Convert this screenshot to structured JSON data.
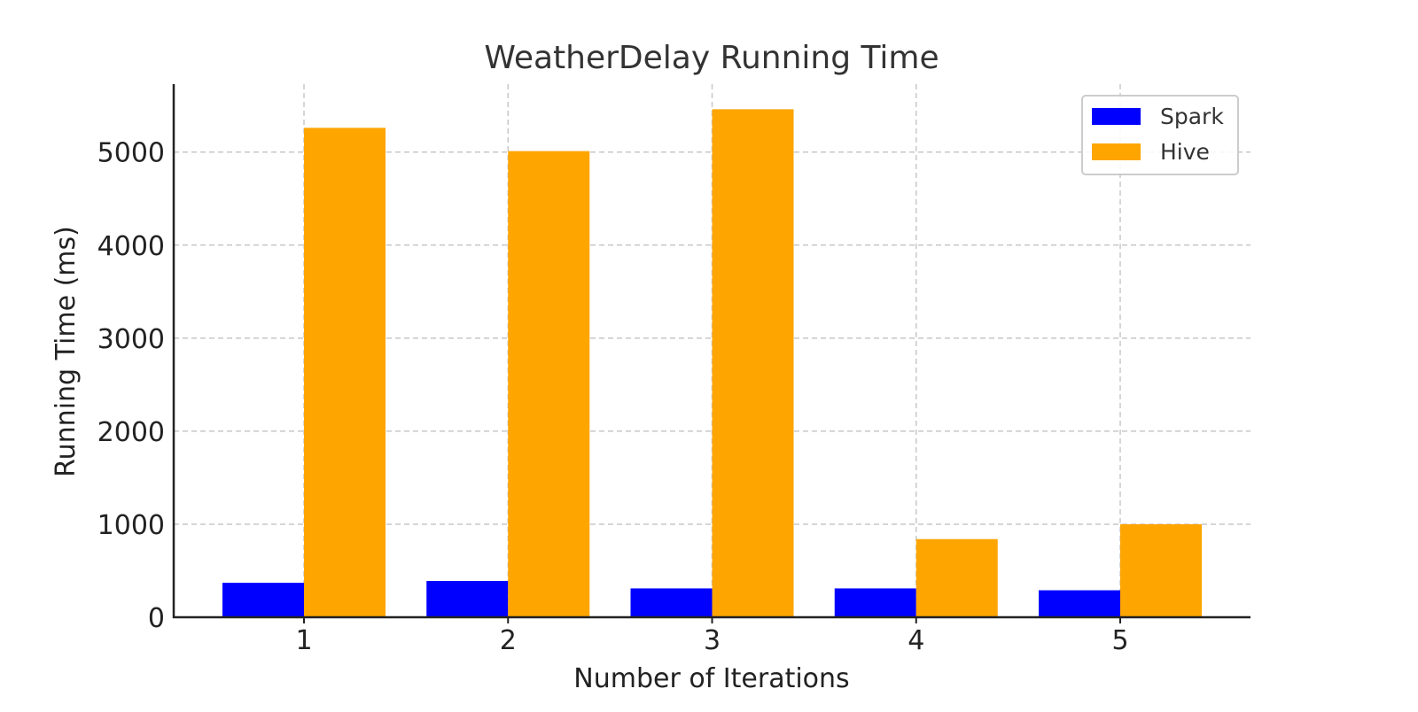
{
  "chart_data": {
    "type": "bar",
    "title": "WeatherDelay Running Time",
    "xlabel": "Number of Iterations",
    "ylabel": "Running Time (ms)",
    "categories": [
      "1",
      "2",
      "3",
      "4",
      "5"
    ],
    "series": [
      {
        "name": "Spark",
        "color": "#0000ff",
        "values": [
          370,
          390,
          310,
          310,
          290
        ]
      },
      {
        "name": "Hive",
        "color": "#ffa500",
        "values": [
          5260,
          5010,
          5460,
          840,
          1000
        ]
      }
    ],
    "ylim": [
      0,
      5730
    ],
    "yticks": [
      0,
      1000,
      2000,
      3000,
      4000,
      5000
    ],
    "grid": true,
    "legend_position": "top-right"
  }
}
